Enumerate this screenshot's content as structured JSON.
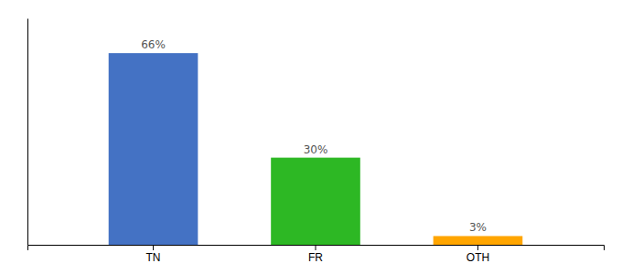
{
  "chart_data": {
    "type": "bar",
    "categories": [
      "TN",
      "FR",
      "OTH"
    ],
    "values": [
      66,
      30,
      3
    ],
    "value_labels": [
      "66%",
      "30%",
      "3%"
    ],
    "colors": [
      "#4472c4",
      "#2db824",
      "#ffa500"
    ],
    "ylim": [
      0,
      78
    ],
    "data_labels": true,
    "tick_labels": "x"
  }
}
